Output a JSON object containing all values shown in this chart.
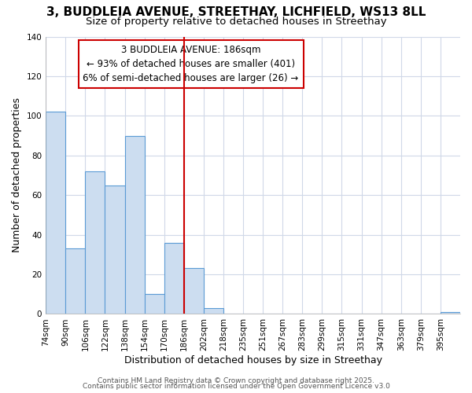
{
  "title1": "3, BUDDLEIA AVENUE, STREETHAY, LICHFIELD, WS13 8LL",
  "title2": "Size of property relative to detached houses in Streethay",
  "xlabel": "Distribution of detached houses by size in Streethay",
  "ylabel": "Number of detached properties",
  "categories": [
    "74sqm",
    "90sqm",
    "106sqm",
    "122sqm",
    "138sqm",
    "154sqm",
    "170sqm",
    "186sqm",
    "202sqm",
    "218sqm",
    "235sqm",
    "251sqm",
    "267sqm",
    "283sqm",
    "299sqm",
    "315sqm",
    "331sqm",
    "347sqm",
    "363sqm",
    "379sqm",
    "395sqm"
  ],
  "values": [
    102,
    33,
    72,
    65,
    90,
    10,
    36,
    23,
    3,
    0,
    0,
    0,
    0,
    0,
    0,
    0,
    0,
    0,
    0,
    0,
    1
  ],
  "bar_color": "#ccddf0",
  "bar_edge_color": "#5b9bd5",
  "vline_index": 7,
  "vline_color": "#cc0000",
  "annotation_text": "3 BUDDLEIA AVENUE: 186sqm\n← 93% of detached houses are smaller (401)\n6% of semi-detached houses are larger (26) →",
  "annotation_box_color": "#ffffff",
  "annotation_border_color": "#cc0000",
  "ylim": [
    0,
    140
  ],
  "yticks": [
    0,
    20,
    40,
    60,
    80,
    100,
    120,
    140
  ],
  "footer1": "Contains HM Land Registry data © Crown copyright and database right 2025.",
  "footer2": "Contains public sector information licensed under the Open Government Licence v3.0",
  "bg_color": "#ffffff",
  "plot_bg_color": "#ffffff",
  "grid_color": "#d0d8e8",
  "title_fontsize": 11,
  "subtitle_fontsize": 9.5,
  "axis_label_fontsize": 9,
  "tick_fontsize": 7.5,
  "annotation_fontsize": 8.5,
  "footer_fontsize": 6.5
}
